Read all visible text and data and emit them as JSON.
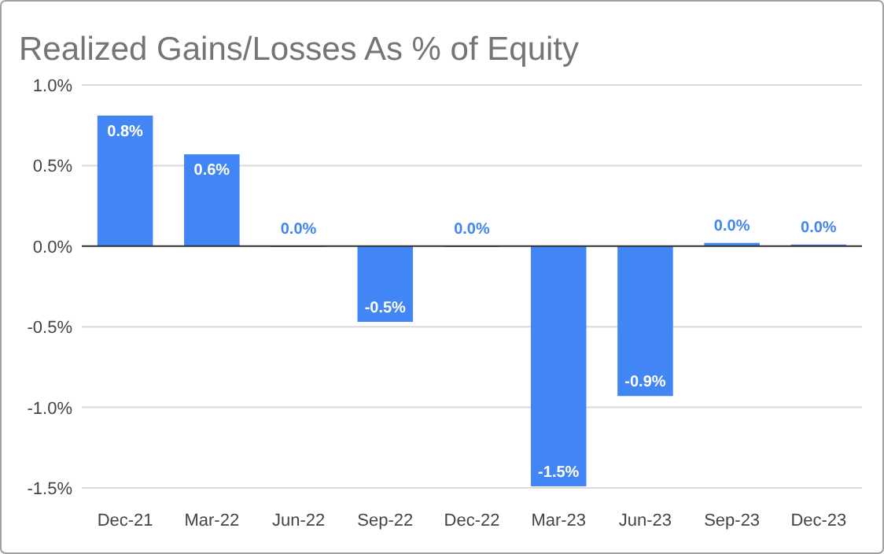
{
  "chart_data": {
    "type": "bar",
    "title": "Realized Gains/Losses As % of Equity",
    "categories": [
      "Dec-21",
      "Mar-22",
      "Jun-22",
      "Sep-22",
      "Dec-22",
      "Mar-23",
      "Jun-23",
      "Sep-23",
      "Dec-23"
    ],
    "values": [
      0.81,
      0.57,
      0,
      -0.47,
      0,
      -1.49,
      -0.93,
      0.02,
      0.01
    ],
    "value_labels": [
      "0.8%",
      "0.6%",
      "0.0%",
      "-0.5%",
      "0.0%",
      "-1.5%",
      "-0.9%",
      "0.0%",
      "0.0%"
    ],
    "color": "#4285f4",
    "ylim": [
      -1.5,
      1.0
    ],
    "yticks": [
      {
        "value": -1.5,
        "label": "-1.5%"
      },
      {
        "value": -1.0,
        "label": "-1.0%"
      },
      {
        "value": -0.5,
        "label": "-0.5%"
      },
      {
        "value": 0,
        "label": "0.0%"
      },
      {
        "value": 0.5,
        "label": "0.5%"
      },
      {
        "value": 1.0,
        "label": "1.0%"
      }
    ],
    "grid": "y"
  }
}
